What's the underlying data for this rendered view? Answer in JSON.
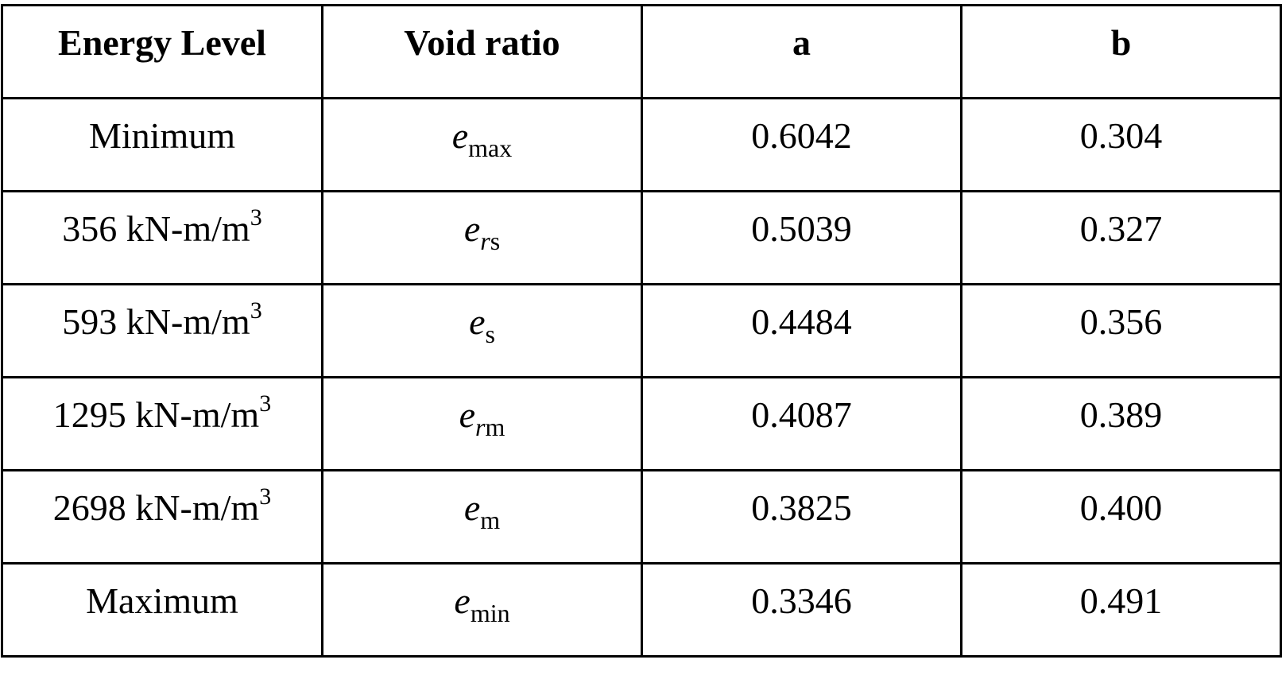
{
  "table": {
    "headers": [
      "Energy Level",
      "Void ratio",
      "a",
      "b"
    ],
    "rows": [
      {
        "energy": "Minimum",
        "energy_sup": "",
        "void_base": "e",
        "void_sub_italic": "",
        "void_sub": "max",
        "a": "0.6042",
        "b": "0.304"
      },
      {
        "energy": "356 kN-m/m",
        "energy_sup": "3",
        "void_base": "e",
        "void_sub_italic": "r",
        "void_sub": "s",
        "a": "0.5039",
        "b": "0.327"
      },
      {
        "energy": "593 kN-m/m",
        "energy_sup": "3",
        "void_base": "e",
        "void_sub_italic": "",
        "void_sub": "s",
        "a": "0.4484",
        "b": "0.356"
      },
      {
        "energy": "1295 kN-m/m",
        "energy_sup": "3",
        "void_base": "e",
        "void_sub_italic": "r",
        "void_sub": "m",
        "a": "0.4087",
        "b": "0.389"
      },
      {
        "energy": "2698 kN-m/m",
        "energy_sup": "3",
        "void_base": "e",
        "void_sub_italic": "",
        "void_sub": "m",
        "a": "0.3825",
        "b": "0.400"
      },
      {
        "energy": "Maximum",
        "energy_sup": "",
        "void_base": "e",
        "void_sub_italic": "",
        "void_sub": "min",
        "a": "0.3346",
        "b": "0.491"
      }
    ]
  }
}
